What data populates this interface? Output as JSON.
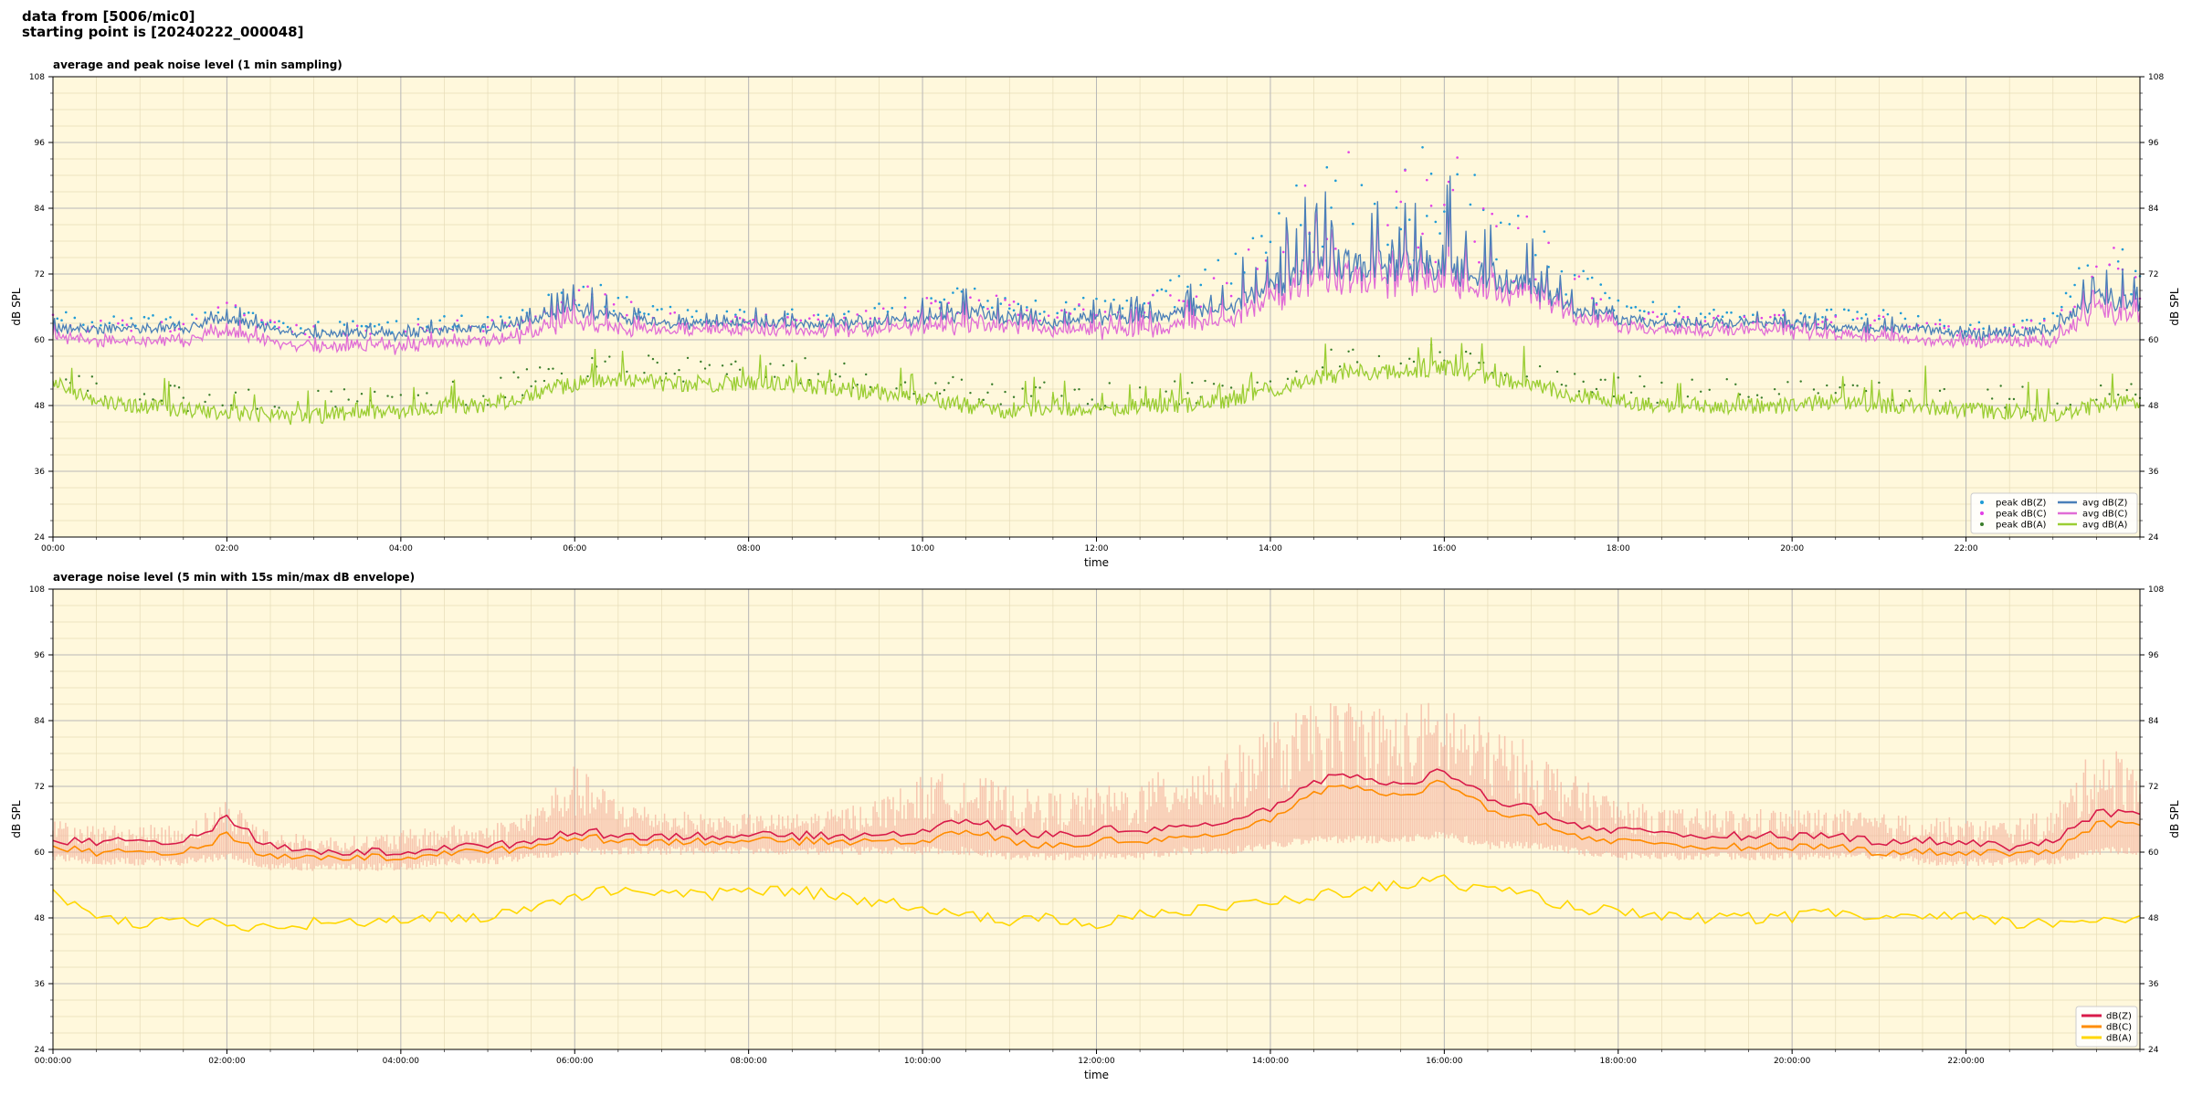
{
  "header": {
    "line1": "data from [5006/mic0]",
    "line2": "starting point is [20240222_000048]"
  },
  "colors": {
    "background": "#fff8dc",
    "peak_z": "#1f9bd6",
    "peak_c": "#e23fe6",
    "peak_a": "#3a7d2a",
    "avg_z": "#4a7fb8",
    "avg_c": "#e06cd6",
    "avg_a": "#9acd32",
    "dbz": "#d81b4a",
    "dbc": "#ff8c00",
    "dba": "#ffd700",
    "envelope": "#f4b6a0"
  },
  "chart_data": [
    {
      "type": "line",
      "title": "average and peak noise level (1 min sampling)",
      "xlabel": "time",
      "ylabel": "dB SPL",
      "ylim": [
        24,
        108
      ],
      "xlim_hours": [
        0,
        24
      ],
      "yticks": [
        "24",
        "36",
        "48",
        "60",
        "72",
        "84",
        "96",
        "108"
      ],
      "xticks": [
        "00:00",
        "02:00",
        "04:00",
        "06:00",
        "08:00",
        "10:00",
        "12:00",
        "14:00",
        "16:00",
        "18:00",
        "20:00",
        "22:00"
      ],
      "grid": true,
      "legend_position": "lower-right",
      "legend": [
        "peak dB(Z)",
        "peak dB(C)",
        "peak dB(A)",
        "avg dB(Z)",
        "avg dB(C)",
        "avg dB(A)"
      ],
      "x_hours": [
        0,
        0.5,
        1,
        1.5,
        2,
        2.5,
        3,
        3.5,
        4,
        4.5,
        5,
        5.5,
        6,
        6.5,
        7,
        7.5,
        8,
        8.5,
        9,
        9.5,
        10,
        10.5,
        11,
        11.5,
        12,
        12.5,
        13,
        13.5,
        14,
        14.5,
        15,
        15.5,
        16,
        16.5,
        17,
        17.5,
        18,
        18.5,
        19,
        19.5,
        20,
        20.5,
        21,
        21.5,
        22,
        22.5,
        23,
        23.5,
        24
      ],
      "series": [
        {
          "name": "avg dB(Z)",
          "values": [
            62,
            62,
            62,
            62,
            64,
            62,
            61,
            61,
            61,
            62,
            62,
            63,
            66,
            64,
            63,
            63,
            63,
            63,
            63,
            63,
            64,
            65,
            64,
            63,
            64,
            64,
            65,
            66,
            69,
            73,
            74,
            73,
            74,
            72,
            69,
            66,
            64,
            63,
            63,
            63,
            63,
            62,
            62,
            62,
            61,
            61,
            62,
            68,
            66
          ]
        },
        {
          "name": "avg dB(C)",
          "values": [
            61,
            60,
            60,
            60,
            62,
            60,
            59,
            59,
            59,
            60,
            60,
            61,
            64,
            62,
            62,
            62,
            62,
            62,
            62,
            62,
            63,
            63,
            63,
            62,
            62,
            62,
            63,
            64,
            67,
            71,
            72,
            71,
            72,
            70,
            68,
            65,
            63,
            62,
            62,
            62,
            62,
            61,
            61,
            60,
            60,
            60,
            60,
            66,
            64
          ]
        },
        {
          "name": "avg dB(A)",
          "values": [
            52,
            49,
            48,
            47,
            47,
            46,
            46,
            47,
            47,
            48,
            48,
            50,
            52,
            53,
            52,
            52,
            52,
            52,
            51,
            50,
            49,
            48,
            47,
            48,
            47,
            48,
            48,
            49,
            51,
            53,
            54,
            54,
            55,
            53,
            52,
            50,
            49,
            48,
            48,
            48,
            48,
            49,
            48,
            48,
            47,
            47,
            46,
            48,
            49
          ]
        },
        {
          "name": "peak dB(Z)",
          "values": [
            64,
            63,
            63,
            63,
            66,
            63,
            62,
            62,
            62,
            63,
            63,
            65,
            68,
            66,
            65,
            64,
            64,
            64,
            64,
            65,
            66,
            67,
            66,
            65,
            66,
            66,
            68,
            70,
            74,
            79,
            81,
            80,
            81,
            78,
            74,
            69,
            66,
            65,
            64,
            64,
            64,
            64,
            64,
            63,
            62,
            62,
            64,
            73,
            70
          ]
        },
        {
          "name": "peak dB(C)",
          "values": [
            63,
            62,
            62,
            62,
            65,
            62,
            61,
            61,
            61,
            62,
            62,
            64,
            67,
            65,
            64,
            63,
            63,
            63,
            63,
            64,
            65,
            66,
            65,
            64,
            65,
            65,
            67,
            69,
            73,
            78,
            80,
            79,
            80,
            77,
            73,
            68,
            65,
            64,
            63,
            63,
            63,
            63,
            63,
            62,
            61,
            61,
            63,
            72,
            69
          ]
        },
        {
          "name": "peak dB(A)",
          "values": [
            54,
            51,
            50,
            49,
            49,
            48,
            48,
            49,
            49,
            50,
            50,
            52,
            54,
            55,
            54,
            54,
            54,
            54,
            53,
            52,
            51,
            50,
            49,
            50,
            49,
            50,
            50,
            51,
            53,
            55,
            56,
            56,
            57,
            55,
            54,
            52,
            51,
            50,
            50,
            50,
            50,
            51,
            50,
            50,
            49,
            49,
            48,
            50,
            51
          ]
        }
      ]
    },
    {
      "type": "line",
      "title": "average noise level (5 min with 15s min/max dB envelope)",
      "xlabel": "time",
      "ylabel": "dB SPL",
      "ylim": [
        24,
        108
      ],
      "xlim_hours": [
        0,
        24
      ],
      "yticks": [
        "24",
        "36",
        "48",
        "60",
        "72",
        "84",
        "96",
        "108"
      ],
      "xticks": [
        "00:00:00",
        "02:00:00",
        "04:00:00",
        "06:00:00",
        "08:00:00",
        "10:00:00",
        "12:00:00",
        "14:00:00",
        "16:00:00",
        "18:00:00",
        "20:00:00",
        "22:00:00"
      ],
      "grid": true,
      "legend_position": "lower-right",
      "legend": [
        "dB(Z)",
        "dB(C)",
        "dB(A)"
      ],
      "x_hours": [
        0,
        0.5,
        1,
        1.5,
        2,
        2.5,
        3,
        3.5,
        4,
        4.5,
        5,
        5.5,
        6,
        6.5,
        7,
        7.5,
        8,
        8.5,
        9,
        9.5,
        10,
        10.5,
        11,
        11.5,
        12,
        12.5,
        13,
        13.5,
        14,
        14.5,
        15,
        15.5,
        16,
        16.5,
        17,
        17.5,
        18,
        18.5,
        19,
        19.5,
        20,
        20.5,
        21,
        21.5,
        22,
        22.5,
        23,
        23.5,
        24
      ],
      "series": [
        {
          "name": "dB(Z)",
          "values": [
            62,
            62,
            62,
            62,
            66,
            61,
            60,
            60,
            60,
            61,
            61,
            62,
            64,
            63,
            63,
            63,
            63,
            63,
            63,
            63,
            64,
            66,
            64,
            63,
            64,
            64,
            65,
            65,
            68,
            73,
            74,
            72,
            75,
            70,
            68,
            65,
            64,
            63,
            63,
            63,
            63,
            63,
            62,
            62,
            62,
            61,
            62,
            67,
            67
          ]
        },
        {
          "name": "dB(C)",
          "values": [
            61,
            60,
            60,
            60,
            63,
            59,
            59,
            59,
            59,
            60,
            60,
            61,
            63,
            62,
            62,
            62,
            62,
            62,
            62,
            62,
            62,
            64,
            62,
            61,
            62,
            62,
            63,
            63,
            66,
            71,
            72,
            70,
            73,
            68,
            66,
            63,
            62,
            61,
            61,
            61,
            61,
            61,
            60,
            60,
            60,
            60,
            60,
            65,
            65
          ]
        },
        {
          "name": "dB(A)",
          "values": [
            53,
            48,
            47,
            47,
            47,
            46,
            47,
            47,
            48,
            48,
            48,
            50,
            52,
            53,
            53,
            52,
            53,
            53,
            52,
            51,
            50,
            49,
            47,
            48,
            47,
            49,
            49,
            50,
            51,
            52,
            53,
            54,
            55,
            53,
            52,
            50,
            49,
            48,
            48,
            48,
            48,
            49,
            48,
            48,
            48,
            47,
            47,
            48,
            48
          ]
        },
        {
          "name": "envelope max",
          "values": [
            66,
            65,
            65,
            65,
            70,
            64,
            63,
            63,
            64,
            65,
            65,
            68,
            76,
            70,
            68,
            67,
            67,
            67,
            68,
            70,
            74,
            75,
            72,
            71,
            72,
            73,
            77,
            78,
            84,
            87,
            89,
            86,
            89,
            84,
            80,
            74,
            70,
            68,
            68,
            68,
            68,
            68,
            67,
            67,
            66,
            66,
            68,
            80,
            78
          ]
        },
        {
          "name": "envelope min",
          "values": [
            60,
            59,
            59,
            59,
            60,
            58,
            58,
            58,
            58,
            59,
            59,
            60,
            61,
            61,
            61,
            61,
            61,
            61,
            61,
            61,
            61,
            61,
            60,
            60,
            60,
            60,
            61,
            61,
            62,
            63,
            63,
            63,
            64,
            62,
            62,
            61,
            60,
            60,
            60,
            60,
            60,
            60,
            60,
            59,
            59,
            59,
            59,
            61,
            61
          ]
        }
      ]
    }
  ]
}
